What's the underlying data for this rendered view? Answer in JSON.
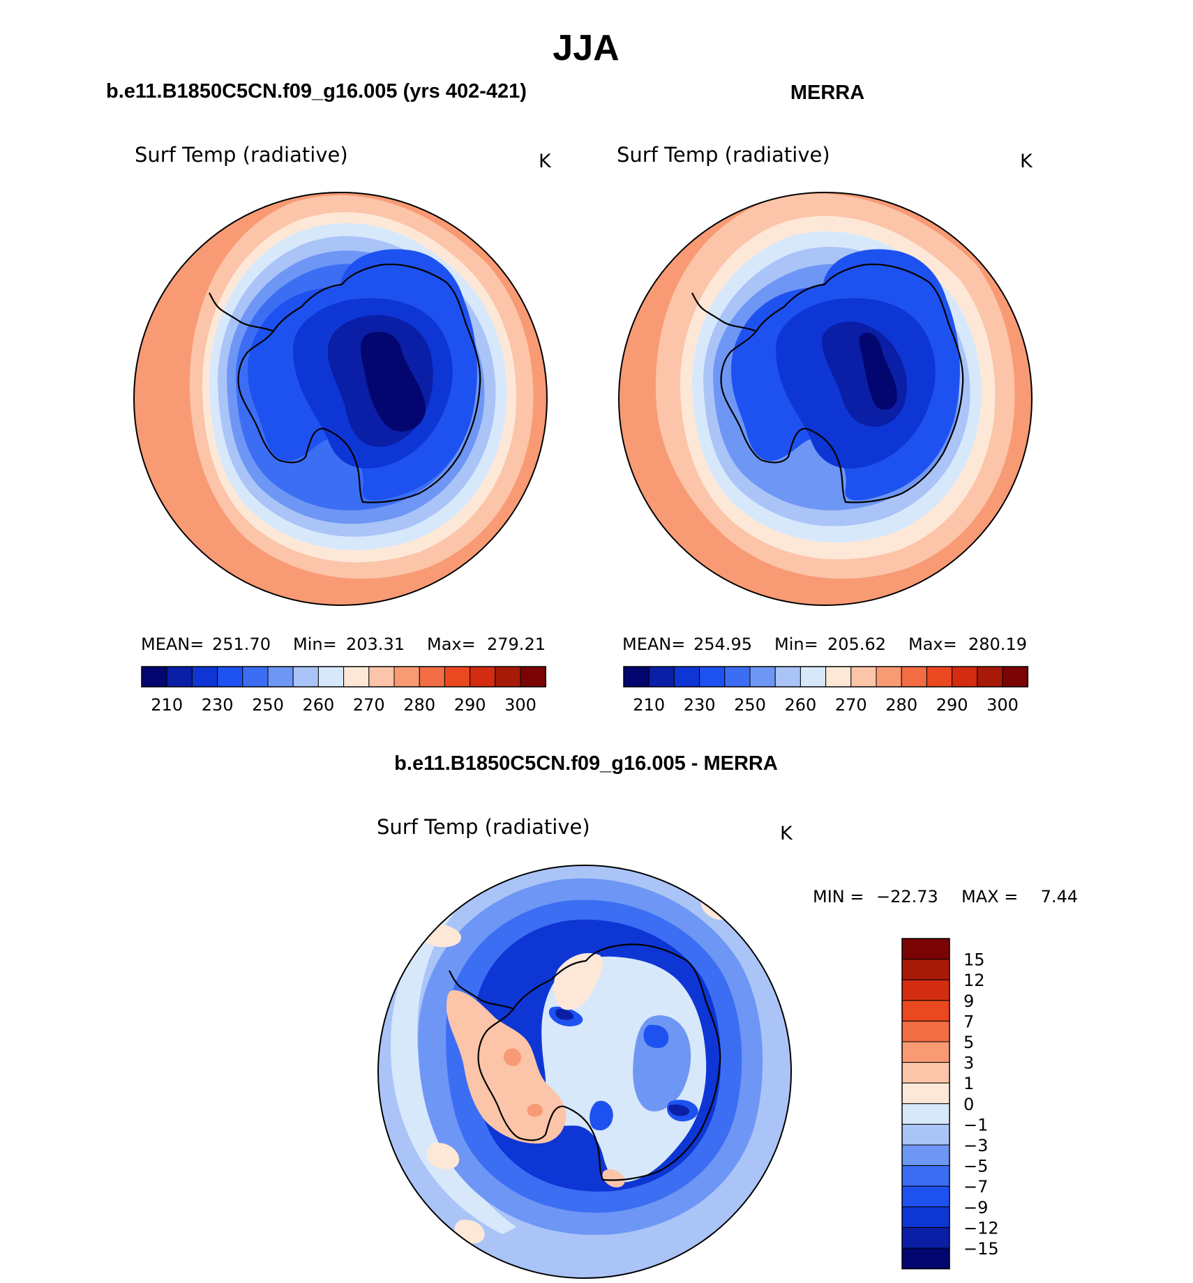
{
  "figure": {
    "season_title": "JJA",
    "model_label": "b.e11.B1850C5CN.f09_g16.005 (yrs 402-421)",
    "obs_label": "MERRA",
    "diff_label": "b.e11.B1850C5CN.f09_g16.005 - MERRA"
  },
  "chart_data": [
    {
      "type": "heatmap",
      "projection": "south-polar-stereographic",
      "variable": "Surf Temp (radiative)",
      "units": "K",
      "stats": {
        "mean_label": "MEAN=",
        "mean": "251.70",
        "min_label": "Min=",
        "min": "203.31",
        "max_label": "Max=",
        "max": "279.21"
      },
      "levels": [
        210,
        220,
        230,
        240,
        250,
        255,
        260,
        265,
        270,
        275,
        280,
        285,
        290,
        295,
        300
      ],
      "tick_labels": [
        "210",
        "230",
        "250",
        "260",
        "270",
        "280",
        "290",
        "300"
      ],
      "colors": [
        "#03066f",
        "#0a1ea6",
        "#0e36d4",
        "#1e52f0",
        "#3c6ef4",
        "#6e96f4",
        "#aac4f8",
        "#d8e8fb",
        "#fde8d8",
        "#fcc4a8",
        "#f89a74",
        "#f26c44",
        "#ea4820",
        "#d42c10",
        "#a81a08",
        "#7a0404"
      ],
      "zones": {
        "plateau_core": 0,
        "plateau": 1,
        "interior": 2,
        "coast": 3,
        "ice_inner": 4,
        "ice_mid": 5,
        "ice_outer": 6,
        "ice_edge": 7,
        "ocean_cold": 8,
        "ocean_mid": 9,
        "ocean_warm": 10
      }
    },
    {
      "type": "heatmap",
      "projection": "south-polar-stereographic",
      "variable": "Surf Temp (radiative)",
      "units": "K",
      "stats": {
        "mean_label": "MEAN=",
        "mean": "254.95",
        "min_label": "Min=",
        "min": "205.62",
        "max_label": "Max=",
        "max": "280.19"
      },
      "levels": [
        210,
        220,
        230,
        240,
        250,
        255,
        260,
        265,
        270,
        275,
        280,
        285,
        290,
        295,
        300
      ],
      "tick_labels": [
        "210",
        "230",
        "250",
        "260",
        "270",
        "280",
        "290",
        "300"
      ],
      "colors": [
        "#03066f",
        "#0a1ea6",
        "#0e36d4",
        "#1e52f0",
        "#3c6ef4",
        "#6e96f4",
        "#aac4f8",
        "#d8e8fb",
        "#fde8d8",
        "#fcc4a8",
        "#f89a74",
        "#f26c44",
        "#ea4820",
        "#d42c10",
        "#a81a08",
        "#7a0404"
      ],
      "zones": {
        "plateau_core": 0,
        "plateau": 1,
        "interior": 2,
        "coast": 3,
        "ice_inner": 5,
        "ice_mid": 6,
        "ice_outer": 7,
        "ice_edge": 8,
        "ocean_cold": 9,
        "ocean_mid": 9,
        "ocean_warm": 10
      }
    },
    {
      "type": "heatmap",
      "projection": "south-polar-stereographic",
      "variable": "Surf Temp (radiative)",
      "units": "K",
      "range_text": {
        "min_label": "MIN =",
        "min": "−22.73",
        "max_label": "MAX =",
        "max": "7.44"
      },
      "levels": [
        -15,
        -12,
        -9,
        -7,
        -5,
        -3,
        -1,
        0,
        1,
        3,
        5,
        7,
        9,
        12,
        15
      ],
      "tick_labels": [
        "−15",
        "−12",
        "−9",
        "−7",
        "−5",
        "−3",
        "−1",
        "0",
        "1",
        "3",
        "5",
        "7",
        "9",
        "12",
        "15"
      ],
      "colors": [
        "#03066f",
        "#0a1ea6",
        "#0e36d4",
        "#1e52f0",
        "#3c6ef4",
        "#6e96f4",
        "#aac4f8",
        "#d8e8fb",
        "#fde8d8",
        "#fcc4a8",
        "#f89a74",
        "#f26c44",
        "#ea4820",
        "#d42c10",
        "#a81a08",
        "#7a0404"
      ],
      "zones": {
        "ocean_base": 6,
        "ring_outer": 5,
        "ring_inner": 4,
        "ring_core": 2,
        "west_warm": 9,
        "west_hot": 10,
        "interior_base": 7,
        "interior_cool": 5,
        "interior_cold": 3,
        "interior_coldest": 1,
        "northwest_warm": 8,
        "ocean_warm_patch": 8,
        "ocean_light": 7
      }
    }
  ]
}
